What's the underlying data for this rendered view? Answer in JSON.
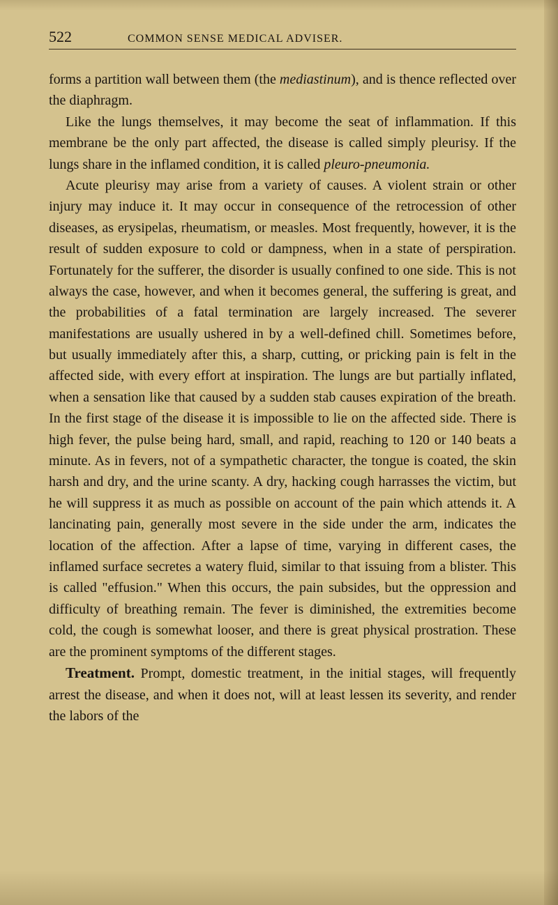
{
  "page": {
    "number": "522",
    "header": "COMMON SENSE MEDICAL ADVISER."
  },
  "paragraphs": {
    "p1_a": "forms a partition wall between them (the ",
    "p1_italic": "mediastinum",
    "p1_b": "), and is thence reflected over the diaphragm.",
    "p2_a": "Like the lungs themselves, it may become the seat of inflammation. If this membrane be the only part affected, the disease is called simply pleurisy. If the lungs share in the inflamed condition, it is called ",
    "p2_italic": "pleuro-pneumonia.",
    "p3": "Acute pleurisy may arise from a variety of causes. A violent strain or other injury may induce it. It may occur in consequence of the retrocession of other diseases, as erysipelas, rheumatism, or measles. Most frequently, however, it is the result of sudden exposure to cold or dampness, when in a state of perspiration. Fortunately for the sufferer, the disorder is usually confined to one side. This is not always the case, however, and when it becomes general, the suffering is great, and the probabilities of a fatal termination are largely increased. The severer manifestations are usually ushered in by a well-defined chill. Sometimes before, but usually immediately after this, a sharp, cutting, or pricking pain is felt in the affected side, with every effort at inspiration. The lungs are but partially inflated, when a sensation like that caused by a sudden stab causes expiration of the breath. In the first stage of the disease it is impossible to lie on the affected side. There is high fever, the pulse being hard, small, and rapid, reaching to 120 or 140 beats a minute. As in fevers, not of a sympathetic character, the tongue is coated, the skin harsh and dry, and the urine scanty. A dry, hacking cough harrasses the victim, but he will suppress it as much as possible on account of the pain which attends it. A lancinating pain, generally most severe in the side under the arm, indicates the location of the affection. After a lapse of time, varying in different cases, the inflamed surface secretes a watery fluid, similar to that issuing from a blister. This is called \"effusion.\" When this occurs, the pain subsides, but the oppression and difficulty of breathing remain. The fever is diminished, the extremities become cold, the cough is somewhat looser, and there is great physical prostration. These are the prominent symptoms of the different stages.",
    "p4_lead": "Treatment.",
    "p4": " Prompt, domestic treatment, in the initial stages, will frequently arrest the disease, and when it does not, will at least lessen its severity, and render the labors of the"
  },
  "styling": {
    "background_color": "#d4c28e",
    "text_color": "#1a1410",
    "body_fontsize": 20,
    "header_fontsize": 16,
    "page_number_fontsize": 22,
    "line_height": 1.52,
    "font_family": "Georgia, Times New Roman, serif"
  }
}
